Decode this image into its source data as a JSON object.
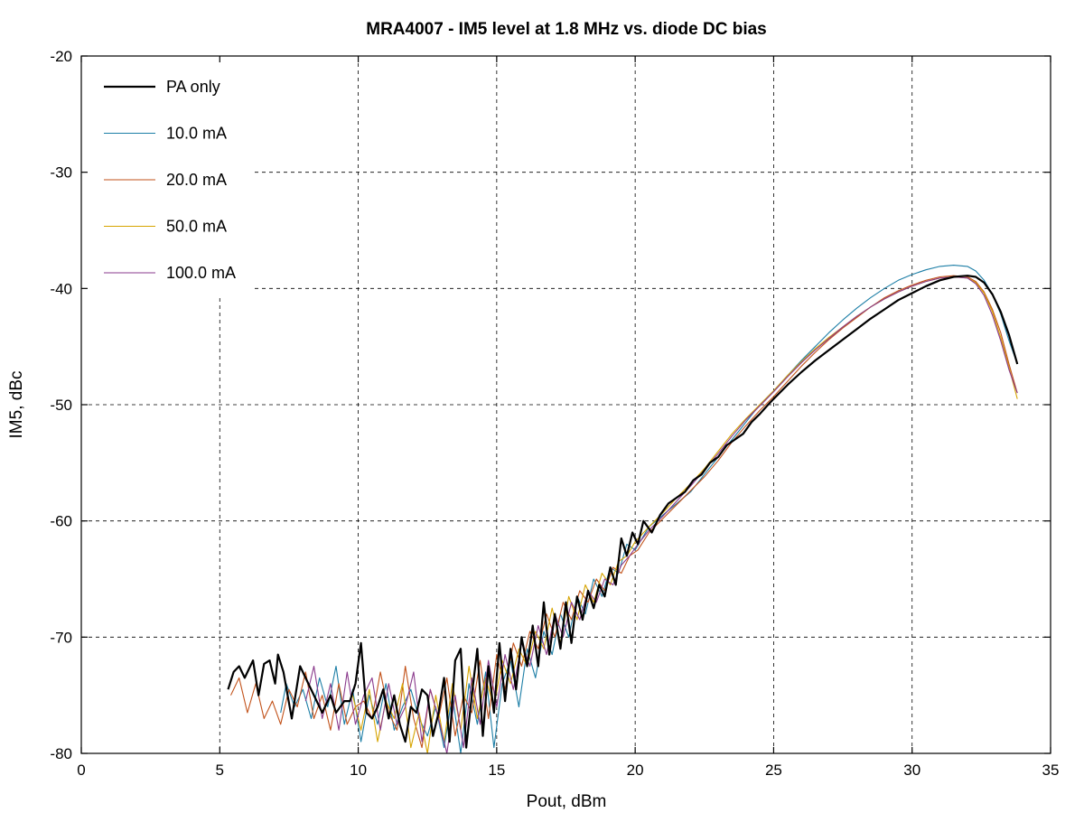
{
  "chart_data": {
    "type": "line",
    "title": "MRA4007 - IM5 level at 1.8 MHz vs. diode DC bias",
    "xlabel": "Pout, dBm",
    "ylabel": "IM5, dBc",
    "xlim": [
      0,
      35
    ],
    "ylim": [
      -80,
      -20
    ],
    "xticks": [
      0,
      5,
      10,
      15,
      20,
      25,
      30,
      35
    ],
    "yticks": [
      -20,
      -30,
      -40,
      -50,
      -60,
      -70,
      -80
    ],
    "xtick_labels": [
      "0",
      "5",
      "10",
      "15",
      "20",
      "25",
      "30",
      "35"
    ],
    "ytick_labels": [
      "-20",
      "-30",
      "-40",
      "-50",
      "-60",
      "-70",
      "-80"
    ],
    "grid": true,
    "legend_position": "top-left",
    "series": [
      {
        "name": "PA only",
        "color": "#000000",
        "width": 2.2,
        "x": [
          5.3,
          5.5,
          5.7,
          5.9,
          6.2,
          6.4,
          6.6,
          6.8,
          7.0,
          7.1,
          7.3,
          7.6,
          7.9,
          8.1,
          8.5,
          8.7,
          9.0,
          9.2,
          9.5,
          9.7,
          9.9,
          10.1,
          10.3,
          10.5,
          10.7,
          10.9,
          11.1,
          11.3,
          11.5,
          11.7,
          11.9,
          12.1,
          12.3,
          12.5,
          12.7,
          12.9,
          13.1,
          13.3,
          13.5,
          13.7,
          13.9,
          14.1,
          14.3,
          14.5,
          14.7,
          14.9,
          15.1,
          15.3,
          15.5,
          15.7,
          15.9,
          16.1,
          16.3,
          16.5,
          16.7,
          16.9,
          17.1,
          17.3,
          17.5,
          17.7,
          17.9,
          18.1,
          18.3,
          18.5,
          18.7,
          18.9,
          19.1,
          19.3,
          19.5,
          19.7,
          19.9,
          20.1,
          20.3,
          20.6,
          20.9,
          21.2,
          21.5,
          21.8,
          22.1,
          22.4,
          22.7,
          23.0,
          23.3,
          23.6,
          23.9,
          24.2,
          24.5,
          24.8,
          25.0,
          25.5,
          26.0,
          26.5,
          27.0,
          27.5,
          28.0,
          28.5,
          29.0,
          29.5,
          30.0,
          30.5,
          31.0,
          31.5,
          32.0,
          32.3,
          32.6,
          32.9,
          33.2,
          33.5,
          33.8
        ],
        "y": [
          -74.5,
          -73.0,
          -72.5,
          -73.5,
          -72.0,
          -75.0,
          -72.3,
          -72.0,
          -74.0,
          -71.5,
          -73.0,
          -77.0,
          -72.5,
          -73.5,
          -75.5,
          -76.5,
          -75.0,
          -76.5,
          -75.5,
          -75.5,
          -74.0,
          -70.5,
          -76.5,
          -77.0,
          -76.0,
          -74.5,
          -77.0,
          -75.0,
          -77.5,
          -79.0,
          -76.0,
          -76.5,
          -74.5,
          -75.0,
          -78.5,
          -76.5,
          -73.5,
          -79.0,
          -72.0,
          -71.0,
          -79.5,
          -75.0,
          -71.0,
          -78.5,
          -72.5,
          -76.5,
          -70.5,
          -75.5,
          -71.0,
          -74.5,
          -70.0,
          -72.5,
          -69.0,
          -72.5,
          -67.0,
          -71.5,
          -68.0,
          -71.0,
          -67.0,
          -70.5,
          -66.5,
          -68.5,
          -66.0,
          -67.5,
          -65.5,
          -66.5,
          -64.0,
          -65.5,
          -61.5,
          -63.0,
          -61.0,
          -62.0,
          -60.0,
          -61.0,
          -59.5,
          -58.5,
          -58.0,
          -57.5,
          -56.5,
          -56.0,
          -55.0,
          -54.5,
          -53.5,
          -53.0,
          -52.5,
          -51.5,
          -50.8,
          -50.0,
          -49.5,
          -48.3,
          -47.2,
          -46.2,
          -45.3,
          -44.4,
          -43.5,
          -42.6,
          -41.8,
          -41.0,
          -40.4,
          -39.8,
          -39.3,
          -39.0,
          -38.9,
          -39.0,
          -39.5,
          -40.5,
          -42.0,
          -44.0,
          -46.5
        ]
      },
      {
        "name": "10.0 mA",
        "color": "#1c7ea6",
        "width": 1.1,
        "x": [
          7.2,
          7.4,
          7.7,
          8.0,
          8.3,
          8.6,
          8.9,
          9.2,
          9.5,
          9.8,
          10.1,
          10.4,
          10.7,
          11.0,
          11.3,
          11.6,
          11.9,
          12.2,
          12.5,
          12.8,
          13.1,
          13.4,
          13.7,
          14.0,
          14.3,
          14.6,
          14.9,
          15.2,
          15.5,
          15.8,
          16.1,
          16.4,
          16.7,
          17.0,
          17.3,
          17.6,
          17.9,
          18.2,
          18.5,
          18.8,
          19.1,
          19.4,
          19.7,
          20.0,
          20.5,
          21.0,
          21.5,
          22.0,
          22.5,
          23.0,
          23.5,
          24.0,
          24.5,
          25.0,
          25.5,
          26.0,
          26.5,
          27.0,
          27.5,
          28.0,
          28.5,
          29.0,
          29.5,
          30.0,
          30.5,
          31.0,
          31.5,
          32.0,
          32.3,
          32.6,
          32.9,
          33.2,
          33.5,
          33.8
        ],
        "y": [
          -76.5,
          -74.0,
          -76.0,
          -74.5,
          -77.0,
          -73.5,
          -76.0,
          -72.5,
          -77.5,
          -74.5,
          -79.0,
          -75.0,
          -77.5,
          -74.0,
          -78.0,
          -76.0,
          -74.5,
          -77.0,
          -78.5,
          -76.0,
          -79.5,
          -75.0,
          -80.0,
          -74.0,
          -77.5,
          -73.0,
          -79.5,
          -74.0,
          -72.0,
          -76.0,
          -71.0,
          -73.5,
          -69.5,
          -71.5,
          -68.0,
          -70.0,
          -66.5,
          -68.0,
          -65.0,
          -66.5,
          -64.0,
          -64.5,
          -62.0,
          -62.5,
          -60.5,
          -59.5,
          -58.5,
          -57.5,
          -56.0,
          -54.5,
          -53.0,
          -51.5,
          -50.0,
          -48.8,
          -47.5,
          -46.2,
          -45.0,
          -43.8,
          -42.7,
          -41.7,
          -40.8,
          -40.0,
          -39.3,
          -38.8,
          -38.4,
          -38.1,
          -38.0,
          -38.1,
          -38.5,
          -39.3,
          -40.5,
          -42.2,
          -44.5,
          -46.5
        ]
      },
      {
        "name": "20.0 mA",
        "color": "#c2521a",
        "width": 1.1,
        "x": [
          5.4,
          5.7,
          6.0,
          6.3,
          6.6,
          6.9,
          7.2,
          7.5,
          7.8,
          8.1,
          8.4,
          8.7,
          9.0,
          9.3,
          9.6,
          9.9,
          10.2,
          10.5,
          10.8,
          11.1,
          11.4,
          11.7,
          12.0,
          12.3,
          12.6,
          12.9,
          13.2,
          13.5,
          13.8,
          14.1,
          14.4,
          14.7,
          15.0,
          15.3,
          15.6,
          15.9,
          16.2,
          16.5,
          16.8,
          17.1,
          17.4,
          17.7,
          18.0,
          18.3,
          18.6,
          18.9,
          19.2,
          19.5,
          19.8,
          20.1,
          20.5,
          21.0,
          21.5,
          22.0,
          22.5,
          23.0,
          23.5,
          24.0,
          24.5,
          25.0,
          25.5,
          26.0,
          26.5,
          27.0,
          27.5,
          28.0,
          28.5,
          29.0,
          29.5,
          30.0,
          30.5,
          31.0,
          31.5,
          32.0,
          32.3,
          32.6,
          32.9,
          33.2,
          33.5,
          33.8
        ],
        "y": [
          -75.0,
          -73.5,
          -76.5,
          -74.0,
          -77.0,
          -75.5,
          -77.5,
          -74.5,
          -76.0,
          -73.0,
          -77.0,
          -75.0,
          -78.0,
          -74.0,
          -77.5,
          -76.0,
          -75.5,
          -77.0,
          -73.0,
          -76.5,
          -78.0,
          -72.5,
          -77.0,
          -79.5,
          -74.5,
          -77.0,
          -73.5,
          -78.5,
          -75.0,
          -76.5,
          -72.0,
          -77.0,
          -71.5,
          -74.5,
          -70.5,
          -72.5,
          -69.5,
          -71.0,
          -68.0,
          -70.0,
          -67.0,
          -68.5,
          -66.0,
          -67.0,
          -65.0,
          -66.0,
          -64.0,
          -64.5,
          -63.0,
          -62.5,
          -61.0,
          -59.8,
          -58.6,
          -57.4,
          -56.2,
          -54.8,
          -53.2,
          -51.8,
          -50.5,
          -49.3,
          -48.0,
          -46.7,
          -45.5,
          -44.4,
          -43.4,
          -42.5,
          -41.6,
          -40.8,
          -40.2,
          -39.7,
          -39.3,
          -39.0,
          -38.9,
          -39.0,
          -39.4,
          -40.3,
          -41.8,
          -43.8,
          -46.5,
          -49.0
        ]
      },
      {
        "name": "50.0 mA",
        "color": "#d6a400",
        "width": 1.1,
        "x": [
          9.8,
          10.1,
          10.4,
          10.7,
          11.0,
          11.3,
          11.6,
          11.9,
          12.2,
          12.5,
          12.8,
          13.1,
          13.4,
          13.7,
          14.0,
          14.3,
          14.6,
          14.9,
          15.2,
          15.5,
          15.8,
          16.1,
          16.4,
          16.7,
          17.0,
          17.3,
          17.6,
          17.9,
          18.2,
          18.5,
          18.8,
          19.1,
          19.4,
          19.7,
          20.0,
          20.5,
          21.0,
          21.5,
          22.0,
          22.5,
          23.0,
          23.5,
          24.0,
          24.5,
          25.0,
          25.5,
          26.0,
          26.5,
          27.0,
          27.5,
          28.0,
          28.5,
          29.0,
          29.5,
          30.0,
          30.5,
          31.0,
          31.5,
          32.0,
          32.3,
          32.6,
          32.9,
          33.2,
          33.5,
          33.8
        ],
        "y": [
          -75.0,
          -78.0,
          -74.5,
          -79.0,
          -75.5,
          -77.0,
          -74.0,
          -79.5,
          -76.5,
          -80.0,
          -75.0,
          -79.0,
          -74.0,
          -78.0,
          -72.5,
          -77.0,
          -73.5,
          -76.0,
          -72.0,
          -74.0,
          -71.0,
          -72.5,
          -69.5,
          -71.0,
          -67.5,
          -70.5,
          -66.5,
          -68.5,
          -65.5,
          -67.0,
          -64.5,
          -65.5,
          -63.5,
          -63.0,
          -61.8,
          -60.5,
          -59.3,
          -58.0,
          -56.8,
          -55.5,
          -54.0,
          -52.5,
          -51.2,
          -50.0,
          -48.8,
          -47.5,
          -46.3,
          -45.2,
          -44.2,
          -43.3,
          -42.4,
          -41.6,
          -40.9,
          -40.3,
          -39.8,
          -39.4,
          -39.1,
          -39.0,
          -39.1,
          -39.5,
          -40.4,
          -42.0,
          -44.2,
          -46.8,
          -49.5
        ]
      },
      {
        "name": "100.0 mA",
        "color": "#8a3a8c",
        "width": 1.1,
        "x": [
          8.1,
          8.4,
          8.7,
          9.0,
          9.3,
          9.6,
          9.9,
          10.2,
          10.5,
          10.8,
          11.1,
          11.4,
          11.7,
          12.0,
          12.3,
          12.6,
          12.9,
          13.2,
          13.5,
          13.8,
          14.1,
          14.4,
          14.7,
          15.0,
          15.3,
          15.6,
          15.9,
          16.2,
          16.5,
          16.8,
          17.1,
          17.4,
          17.7,
          18.0,
          18.3,
          18.6,
          18.9,
          19.2,
          19.5,
          19.8,
          20.1,
          20.5,
          21.0,
          21.5,
          22.0,
          22.5,
          23.0,
          23.5,
          24.0,
          24.5,
          25.0,
          25.5,
          26.0,
          26.5,
          27.0,
          27.5,
          28.0,
          28.5,
          29.0,
          29.5,
          30.0,
          30.5,
          31.0,
          31.5,
          32.0,
          32.3,
          32.6,
          32.9,
          33.2,
          33.5,
          33.8
        ],
        "y": [
          -75.5,
          -72.5,
          -77.0,
          -74.0,
          -78.0,
          -73.0,
          -77.5,
          -75.0,
          -73.5,
          -78.0,
          -74.0,
          -77.5,
          -76.0,
          -73.0,
          -79.0,
          -74.5,
          -77.0,
          -80.0,
          -75.0,
          -79.5,
          -73.5,
          -77.5,
          -72.0,
          -76.0,
          -71.5,
          -74.5,
          -70.5,
          -72.5,
          -69.0,
          -71.5,
          -68.0,
          -70.0,
          -67.0,
          -68.5,
          -66.0,
          -67.0,
          -65.0,
          -65.5,
          -63.8,
          -63.0,
          -62.0,
          -60.8,
          -59.6,
          -58.3,
          -57.0,
          -55.6,
          -54.2,
          -52.7,
          -51.3,
          -50.1,
          -48.9,
          -47.6,
          -46.4,
          -45.3,
          -44.3,
          -43.3,
          -42.4,
          -41.6,
          -40.9,
          -40.3,
          -39.8,
          -39.4,
          -39.1,
          -39.0,
          -39.1,
          -39.6,
          -40.6,
          -42.3,
          -44.5,
          -47.0,
          -49.0
        ]
      }
    ]
  }
}
